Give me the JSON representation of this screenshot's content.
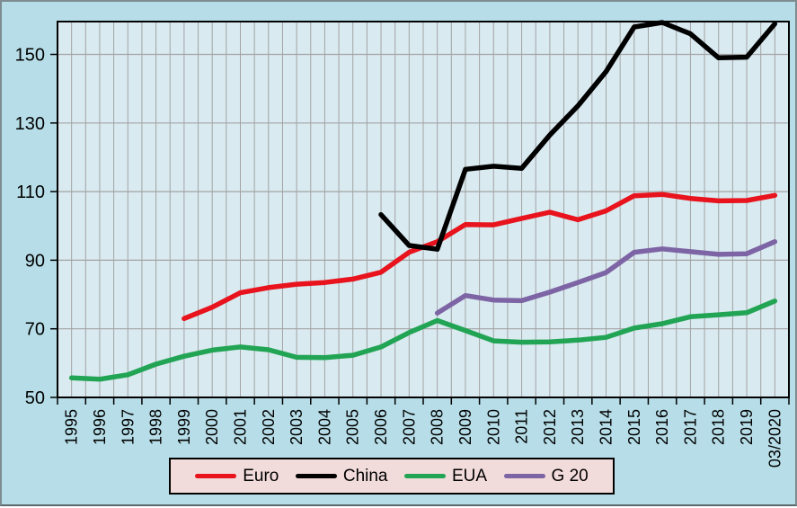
{
  "chart_data": {
    "type": "line",
    "title": "",
    "xlabel": "",
    "ylabel": "",
    "categories": [
      "1995",
      "1996",
      "1997",
      "1998",
      "1999",
      "2000",
      "2001",
      "2002",
      "2003",
      "2004",
      "2005",
      "2006",
      "2007",
      "2008",
      "2009",
      "2010",
      "2011",
      "2012",
      "2013",
      "2014",
      "2015",
      "2016",
      "2017",
      "2018",
      "2019",
      "03/2020"
    ],
    "ylim": [
      50,
      160
    ],
    "yticks": [
      50,
      70,
      90,
      110,
      130,
      150
    ],
    "grid": "major-horizontal-and-half-category-vertical",
    "legend_position": "bottom",
    "series": [
      {
        "name": "Euro",
        "color": "#e8131c",
        "start_index": 4,
        "values": [
          73,
          76.3,
          80.5,
          82,
          83,
          83.5,
          84.5,
          86.5,
          92.3,
          95.4,
          100.4,
          100.3,
          102.2,
          104,
          101.8,
          104.4,
          108.8,
          109.2,
          108,
          107.3,
          107.4,
          108.9
        ]
      },
      {
        "name": "China",
        "color": "#000000",
        "start_index": 11,
        "values": [
          103.3,
          94.3,
          93.2,
          116.5,
          117.4,
          116.8,
          126.5,
          135,
          145,
          158,
          159.3,
          156,
          149,
          149.2,
          158.9
        ]
      },
      {
        "name": "EUA",
        "color": "#21a453",
        "start_index": 0,
        "values": [
          55.7,
          55.3,
          56.6,
          59.7,
          62,
          63.8,
          64.7,
          63.9,
          61.7,
          61.6,
          62.3,
          64.7,
          68.9,
          72.4,
          69.5,
          66.5,
          66.1,
          66.2,
          66.7,
          67.5,
          70.2,
          71.5,
          73.5,
          74.1,
          74.7,
          78.1
        ]
      },
      {
        "name": "G 20",
        "color": "#7d64a5",
        "start_index": 13,
        "values": [
          74.6,
          79.7,
          78.4,
          78.2,
          80.7,
          83.5,
          86.4,
          92.3,
          93.3,
          92.5,
          91.7,
          91.9,
          95.4
        ]
      }
    ]
  },
  "colors": {
    "background": "#b7dee8",
    "plot_background": "#d9eaf1",
    "gridline": "#a3a3a3",
    "axis": "#000000",
    "tick_label": "#000000",
    "legend_background": "#f2dcdb",
    "legend_border": "#000000",
    "frame_border": "#7e8b90"
  }
}
